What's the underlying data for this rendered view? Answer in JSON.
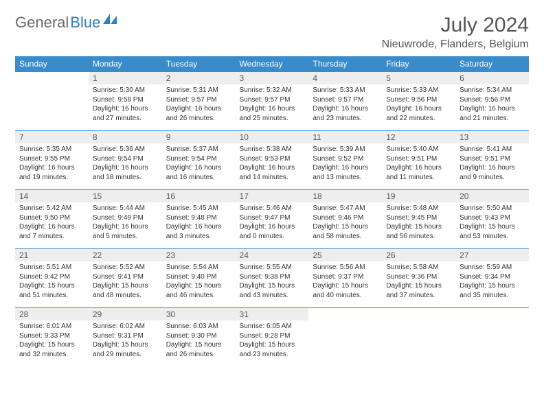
{
  "brand": {
    "part1": "General",
    "part2": "Blue"
  },
  "title": "July 2024",
  "location": "Nieuwrode, Flanders, Belgium",
  "styling": {
    "header_bg": "#3a8bc9",
    "header_fg": "#ffffff",
    "daynum_bg": "#eeeeee",
    "daynum_fg": "#555555",
    "body_fg": "#333333",
    "border_color": "#3a8bc9",
    "title_fontsize": 30,
    "location_fontsize": 16,
    "th_fontsize": 12,
    "daynum_fontsize": 12,
    "body_fontsize": 10
  },
  "weekdays": [
    "Sunday",
    "Monday",
    "Tuesday",
    "Wednesday",
    "Thursday",
    "Friday",
    "Saturday"
  ],
  "weeks": [
    [
      null,
      {
        "n": "1",
        "sr": "5:30 AM",
        "ss": "9:58 PM",
        "dl": "16 hours and 27 minutes."
      },
      {
        "n": "2",
        "sr": "5:31 AM",
        "ss": "9:57 PM",
        "dl": "16 hours and 26 minutes."
      },
      {
        "n": "3",
        "sr": "5:32 AM",
        "ss": "9:57 PM",
        "dl": "16 hours and 25 minutes."
      },
      {
        "n": "4",
        "sr": "5:33 AM",
        "ss": "9:57 PM",
        "dl": "16 hours and 23 minutes."
      },
      {
        "n": "5",
        "sr": "5:33 AM",
        "ss": "9:56 PM",
        "dl": "16 hours and 22 minutes."
      },
      {
        "n": "6",
        "sr": "5:34 AM",
        "ss": "9:56 PM",
        "dl": "16 hours and 21 minutes."
      }
    ],
    [
      {
        "n": "7",
        "sr": "5:35 AM",
        "ss": "9:55 PM",
        "dl": "16 hours and 19 minutes."
      },
      {
        "n": "8",
        "sr": "5:36 AM",
        "ss": "9:54 PM",
        "dl": "16 hours and 18 minutes."
      },
      {
        "n": "9",
        "sr": "5:37 AM",
        "ss": "9:54 PM",
        "dl": "16 hours and 16 minutes."
      },
      {
        "n": "10",
        "sr": "5:38 AM",
        "ss": "9:53 PM",
        "dl": "16 hours and 14 minutes."
      },
      {
        "n": "11",
        "sr": "5:39 AM",
        "ss": "9:52 PM",
        "dl": "16 hours and 13 minutes."
      },
      {
        "n": "12",
        "sr": "5:40 AM",
        "ss": "9:51 PM",
        "dl": "16 hours and 11 minutes."
      },
      {
        "n": "13",
        "sr": "5:41 AM",
        "ss": "9:51 PM",
        "dl": "16 hours and 9 minutes."
      }
    ],
    [
      {
        "n": "14",
        "sr": "5:42 AM",
        "ss": "9:50 PM",
        "dl": "16 hours and 7 minutes."
      },
      {
        "n": "15",
        "sr": "5:44 AM",
        "ss": "9:49 PM",
        "dl": "16 hours and 5 minutes."
      },
      {
        "n": "16",
        "sr": "5:45 AM",
        "ss": "9:48 PM",
        "dl": "16 hours and 3 minutes."
      },
      {
        "n": "17",
        "sr": "5:46 AM",
        "ss": "9:47 PM",
        "dl": "16 hours and 0 minutes."
      },
      {
        "n": "18",
        "sr": "5:47 AM",
        "ss": "9:46 PM",
        "dl": "15 hours and 58 minutes."
      },
      {
        "n": "19",
        "sr": "5:48 AM",
        "ss": "9:45 PM",
        "dl": "15 hours and 56 minutes."
      },
      {
        "n": "20",
        "sr": "5:50 AM",
        "ss": "9:43 PM",
        "dl": "15 hours and 53 minutes."
      }
    ],
    [
      {
        "n": "21",
        "sr": "5:51 AM",
        "ss": "9:42 PM",
        "dl": "15 hours and 51 minutes."
      },
      {
        "n": "22",
        "sr": "5:52 AM",
        "ss": "9:41 PM",
        "dl": "15 hours and 48 minutes."
      },
      {
        "n": "23",
        "sr": "5:54 AM",
        "ss": "9:40 PM",
        "dl": "15 hours and 46 minutes."
      },
      {
        "n": "24",
        "sr": "5:55 AM",
        "ss": "9:38 PM",
        "dl": "15 hours and 43 minutes."
      },
      {
        "n": "25",
        "sr": "5:56 AM",
        "ss": "9:37 PM",
        "dl": "15 hours and 40 minutes."
      },
      {
        "n": "26",
        "sr": "5:58 AM",
        "ss": "9:36 PM",
        "dl": "15 hours and 37 minutes."
      },
      {
        "n": "27",
        "sr": "5:59 AM",
        "ss": "9:34 PM",
        "dl": "15 hours and 35 minutes."
      }
    ],
    [
      {
        "n": "28",
        "sr": "6:01 AM",
        "ss": "9:33 PM",
        "dl": "15 hours and 32 minutes."
      },
      {
        "n": "29",
        "sr": "6:02 AM",
        "ss": "9:31 PM",
        "dl": "15 hours and 29 minutes."
      },
      {
        "n": "30",
        "sr": "6:03 AM",
        "ss": "9:30 PM",
        "dl": "15 hours and 26 minutes."
      },
      {
        "n": "31",
        "sr": "6:05 AM",
        "ss": "9:28 PM",
        "dl": "15 hours and 23 minutes."
      },
      null,
      null,
      null
    ]
  ]
}
